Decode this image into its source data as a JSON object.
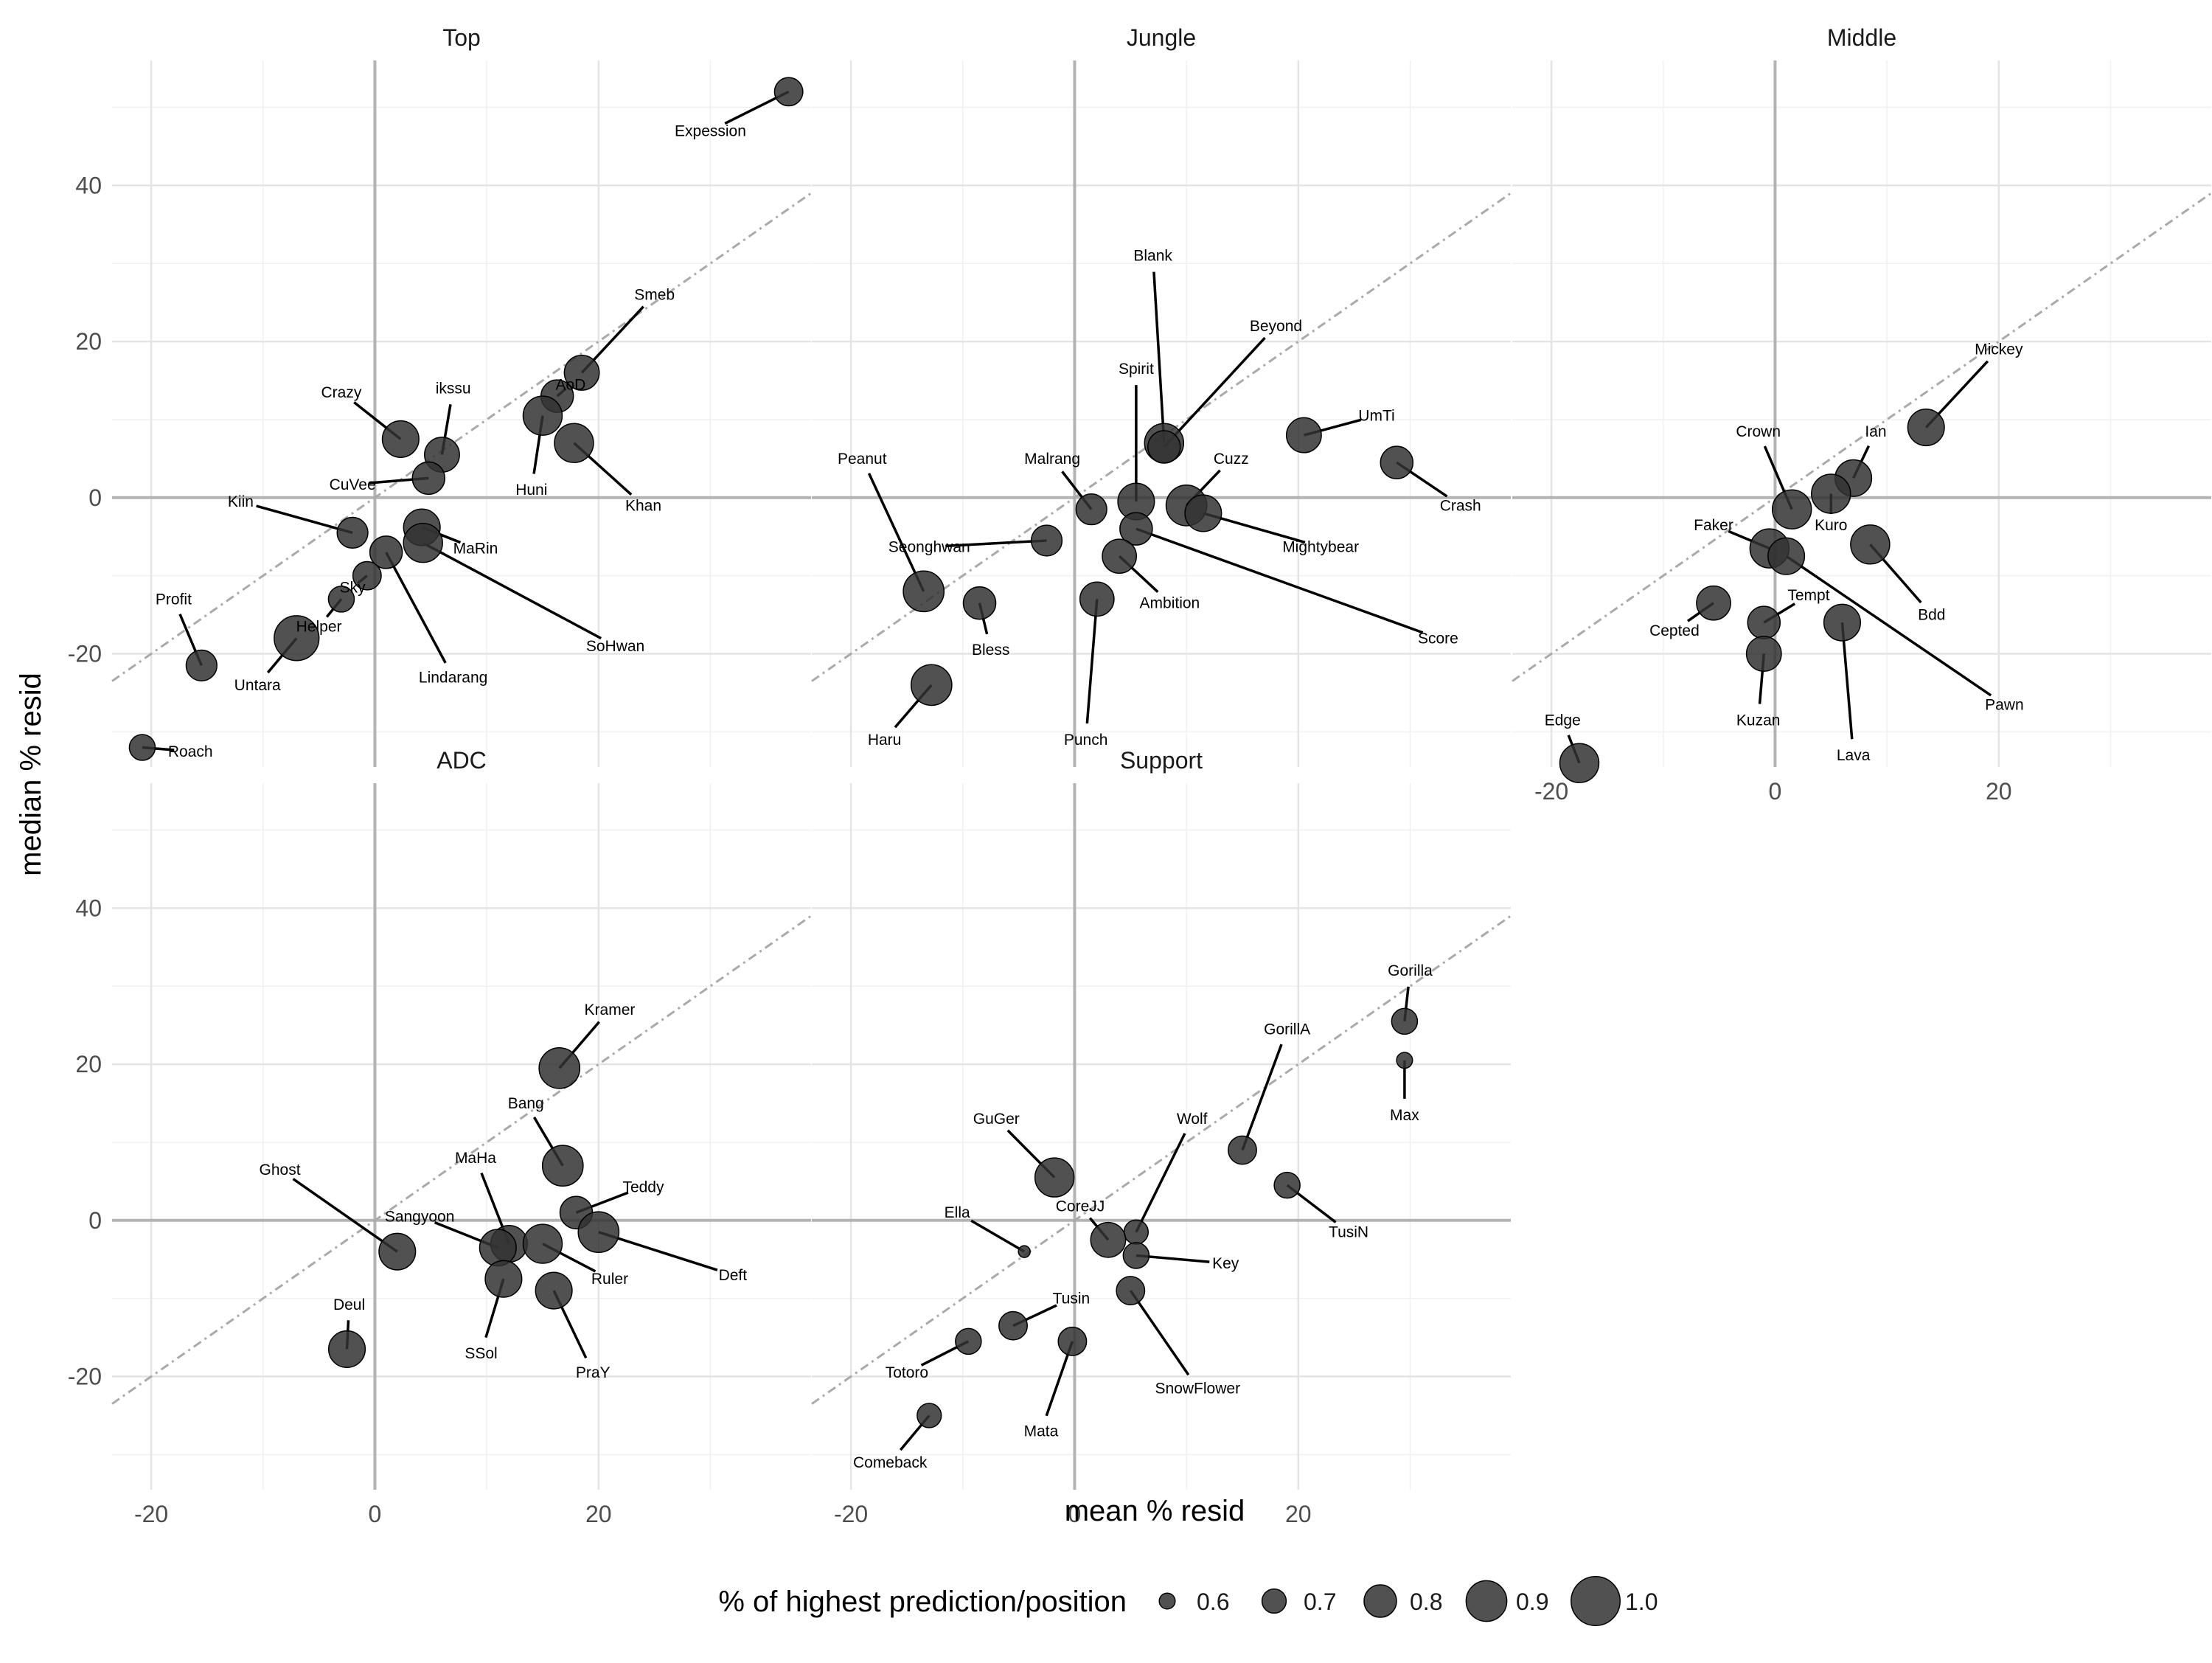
{
  "chart_data": {
    "type": "scatter",
    "facets": [
      "Top",
      "Jungle",
      "Middle",
      "ADC",
      "Support"
    ],
    "xlabel": "mean % resid",
    "ylabel": "median % resid",
    "x_ticks": [
      -20,
      0,
      20
    ],
    "y_ticks": [
      -20,
      0,
      20,
      40
    ],
    "xlim": [
      -23.5,
      39
    ],
    "ylim": [
      -34.5,
      56
    ],
    "reference_lines": [
      "x = 0",
      "y = 0",
      "y = x (dot-dash)"
    ],
    "grid": true,
    "legend": {
      "title": "% of highest prediction/position",
      "position": "bottom",
      "values": [
        0.6,
        0.7,
        0.8,
        0.9,
        1.0
      ],
      "labels": [
        "0.6",
        "0.7",
        "0.8",
        "0.9",
        "1.0"
      ]
    },
    "point_color": "#333333",
    "points": {
      "Top": [
        {
          "name": "Expession",
          "x": 37,
          "y": 52,
          "size": 0.75,
          "lx": 30,
          "ly": 47
        },
        {
          "name": "Smeb",
          "x": 18.5,
          "y": 16,
          "size": 0.83,
          "lx": 25,
          "ly": 26
        },
        {
          "name": "AoD",
          "x": 16.3,
          "y": 13,
          "size": 0.8,
          "lx": 17.5,
          "ly": 14.5
        },
        {
          "name": "ikssu",
          "x": 6,
          "y": 5.5,
          "size": 0.83,
          "lx": 7,
          "ly": 14
        },
        {
          "name": "Crazy",
          "x": 2.3,
          "y": 7.5,
          "size": 0.85,
          "lx": -3,
          "ly": 13.5
        },
        {
          "name": "Huni",
          "x": 15,
          "y": 10.5,
          "size": 0.88,
          "lx": 14,
          "ly": 1
        },
        {
          "name": "Khan",
          "x": 17.8,
          "y": 7,
          "size": 0.88,
          "lx": 24,
          "ly": -1
        },
        {
          "name": "CuVee",
          "x": 4.8,
          "y": 2.5,
          "size": 0.8,
          "lx": -2,
          "ly": 1.7
        },
        {
          "name": "Kiin",
          "x": -2,
          "y": -4.5,
          "size": 0.78,
          "lx": -12,
          "ly": -0.5
        },
        {
          "name": "MaRin",
          "x": 4.2,
          "y": -3.8,
          "size": 0.85,
          "lx": 9,
          "ly": -6.5
        },
        {
          "name": "Lindarang",
          "x": 1,
          "y": -7,
          "size": 0.8,
          "lx": 7,
          "ly": -23
        },
        {
          "name": "SoHwan",
          "x": 4.3,
          "y": -5.8,
          "size": 0.88,
          "lx": 21.5,
          "ly": -19
        },
        {
          "name": "Sky",
          "x": -0.7,
          "y": -10,
          "size": 0.75,
          "lx": -2,
          "ly": -11.5
        },
        {
          "name": "Helper",
          "x": -3,
          "y": -13,
          "size": 0.72,
          "lx": -5,
          "ly": -16.5
        },
        {
          "name": "Untara",
          "x": -7,
          "y": -18,
          "size": 0.95,
          "lx": -10.5,
          "ly": -24
        },
        {
          "name": "Profit",
          "x": -15.5,
          "y": -21.5,
          "size": 0.78,
          "lx": -18,
          "ly": -13
        },
        {
          "name": "Roach",
          "x": -20.8,
          "y": -32,
          "size": 0.72,
          "lx": -16.5,
          "ly": -32.5
        }
      ],
      "Jungle": [
        {
          "name": "Blank",
          "x": 8,
          "y": 7,
          "size": 0.88,
          "lx": 7,
          "ly": 31
        },
        {
          "name": "Beyond",
          "x": 8,
          "y": 6.5,
          "size": 0.8,
          "lx": 18,
          "ly": 22
        },
        {
          "name": "Spirit",
          "x": 5.5,
          "y": -0.5,
          "size": 0.85,
          "lx": 5.5,
          "ly": 16.5
        },
        {
          "name": "UmTi",
          "x": 20.5,
          "y": 8,
          "size": 0.83,
          "lx": 27,
          "ly": 10.5
        },
        {
          "name": "Crash",
          "x": 28.8,
          "y": 4.5,
          "size": 0.8,
          "lx": 34.5,
          "ly": -1
        },
        {
          "name": "Peanut",
          "x": -13.5,
          "y": -12,
          "size": 0.9,
          "lx": -19,
          "ly": 5
        },
        {
          "name": "Malrang",
          "x": 1.5,
          "y": -1.5,
          "size": 0.78,
          "lx": -2,
          "ly": 5
        },
        {
          "name": "Cuzz",
          "x": 10,
          "y": -1,
          "size": 0.9,
          "lx": 14,
          "ly": 5
        },
        {
          "name": "Seonghwan",
          "x": -2.5,
          "y": -5.5,
          "size": 0.78,
          "lx": -13,
          "ly": -6.3
        },
        {
          "name": "Mightybear",
          "x": 11.5,
          "y": -2,
          "size": 0.85,
          "lx": 22,
          "ly": -6.3
        },
        {
          "name": "Score",
          "x": 5.5,
          "y": -4,
          "size": 0.8,
          "lx": 32.5,
          "ly": -18
        },
        {
          "name": "Ambition",
          "x": 4,
          "y": -7.5,
          "size": 0.82,
          "lx": 8.5,
          "ly": -13.5
        },
        {
          "name": "Bless",
          "x": -8.5,
          "y": -13.5,
          "size": 0.8,
          "lx": -7.5,
          "ly": -19.5
        },
        {
          "name": "Punch",
          "x": 2,
          "y": -13,
          "size": 0.82,
          "lx": 1,
          "ly": -31
        },
        {
          "name": "Haru",
          "x": -12.8,
          "y": -24,
          "size": 0.9,
          "lx": -17,
          "ly": -31
        }
      ],
      "Middle": [
        {
          "name": "Mickey",
          "x": 13.5,
          "y": 9,
          "size": 0.85,
          "lx": 20,
          "ly": 19
        },
        {
          "name": "Crown",
          "x": 1.5,
          "y": -1.5,
          "size": 0.88,
          "lx": -1.5,
          "ly": 8.5
        },
        {
          "name": "Ian",
          "x": 7,
          "y": 2.5,
          "size": 0.85,
          "lx": 9,
          "ly": 8.5
        },
        {
          "name": "Kuro",
          "x": 5,
          "y": 0.5,
          "size": 0.88,
          "lx": 5,
          "ly": -3.5
        },
        {
          "name": "Faker",
          "x": -0.5,
          "y": -6.5,
          "size": 0.88,
          "lx": -5.5,
          "ly": -3.5
        },
        {
          "name": "Bdd",
          "x": 8.5,
          "y": -6,
          "size": 0.88,
          "lx": 14,
          "ly": -15
        },
        {
          "name": "Cepted",
          "x": -5.5,
          "y": -13.5,
          "size": 0.82,
          "lx": -9,
          "ly": -17
        },
        {
          "name": "Tempt",
          "x": -1,
          "y": -16,
          "size": 0.8,
          "lx": 3,
          "ly": -12.5
        },
        {
          "name": "Pawn",
          "x": 1,
          "y": -7.5,
          "size": 0.85,
          "lx": 20.5,
          "ly": -26.5
        },
        {
          "name": "Kuzan",
          "x": -1,
          "y": -20,
          "size": 0.83,
          "lx": -1.5,
          "ly": -28.5
        },
        {
          "name": "Lava",
          "x": 6,
          "y": -16,
          "size": 0.85,
          "lx": 7,
          "ly": -33
        },
        {
          "name": "Edge",
          "x": -17.5,
          "y": -34,
          "size": 0.88,
          "lx": -19,
          "ly": -28.5
        }
      ],
      "ADC": [
        {
          "name": "Kramer",
          "x": 16.5,
          "y": 19.5,
          "size": 0.9,
          "lx": 21,
          "ly": 27
        },
        {
          "name": "Bang",
          "x": 16.8,
          "y": 7,
          "size": 0.9,
          "lx": 13.5,
          "ly": 15
        },
        {
          "name": "Teddy",
          "x": 18,
          "y": 1,
          "size": 0.8,
          "lx": 24,
          "ly": 4.3
        },
        {
          "name": "Deft",
          "x": 20,
          "y": -1.5,
          "size": 0.9,
          "lx": 32,
          "ly": -7
        },
        {
          "name": "Ghost",
          "x": 2,
          "y": -4,
          "size": 0.85,
          "lx": -8.5,
          "ly": 6.5
        },
        {
          "name": "MaHa",
          "x": 12,
          "y": -3,
          "size": 0.85,
          "lx": 9,
          "ly": 8
        },
        {
          "name": "Sangyoon",
          "x": 11,
          "y": -3.5,
          "size": 0.85,
          "lx": 4,
          "ly": 0.5
        },
        {
          "name": "Ruler",
          "x": 15,
          "y": -3,
          "size": 0.88,
          "lx": 21,
          "ly": -7.5
        },
        {
          "name": "SSol",
          "x": 11.5,
          "y": -7.5,
          "size": 0.85,
          "lx": 9.5,
          "ly": -17
        },
        {
          "name": "PraY",
          "x": 16,
          "y": -9,
          "size": 0.85,
          "lx": 19.5,
          "ly": -19.5
        },
        {
          "name": "Deul",
          "x": -2.5,
          "y": -16.5,
          "size": 0.85,
          "lx": -2.3,
          "ly": -10.8
        }
      ],
      "Support": [
        {
          "name": "Gorilla",
          "x": 29.5,
          "y": 25.5,
          "size": 0.72,
          "lx": 30,
          "ly": 32
        },
        {
          "name": "Max",
          "x": 29.5,
          "y": 20.5,
          "size": 0.6,
          "lx": 29.5,
          "ly": 13.5
        },
        {
          "name": "GorillA",
          "x": 15,
          "y": 9,
          "size": 0.75,
          "lx": 19,
          "ly": 24.5
        },
        {
          "name": "GuGer",
          "x": -1.8,
          "y": 5.5,
          "size": 0.88,
          "lx": -7,
          "ly": 13
        },
        {
          "name": "Wolf",
          "x": 5.5,
          "y": -1.5,
          "size": 0.7,
          "lx": 10.5,
          "ly": 13
        },
        {
          "name": "TusiN",
          "x": 19,
          "y": 4.5,
          "size": 0.72,
          "lx": 24.5,
          "ly": -1.5
        },
        {
          "name": "Ella",
          "x": -4.5,
          "y": -4,
          "size": 0.55,
          "lx": -10.5,
          "ly": 1
        },
        {
          "name": "CoreJJ",
          "x": 3,
          "y": -2.5,
          "size": 0.83,
          "lx": 0.5,
          "ly": 1.8
        },
        {
          "name": "Key",
          "x": 5.5,
          "y": -4.5,
          "size": 0.72,
          "lx": 13.5,
          "ly": -5.5
        },
        {
          "name": "SnowFlower",
          "x": 5,
          "y": -9,
          "size": 0.75,
          "lx": 11,
          "ly": -21.5
        },
        {
          "name": "Tusin",
          "x": -5.5,
          "y": -13.5,
          "size": 0.75,
          "lx": -0.3,
          "ly": -10
        },
        {
          "name": "Totoro",
          "x": -9.5,
          "y": -15.5,
          "size": 0.72,
          "lx": -15,
          "ly": -19.5
        },
        {
          "name": "Mata",
          "x": -0.2,
          "y": -15.5,
          "size": 0.75,
          "lx": -3,
          "ly": -27
        },
        {
          "name": "Comeback",
          "x": -13,
          "y": -25,
          "size": 0.7,
          "lx": -16.5,
          "ly": -31
        }
      ]
    }
  }
}
